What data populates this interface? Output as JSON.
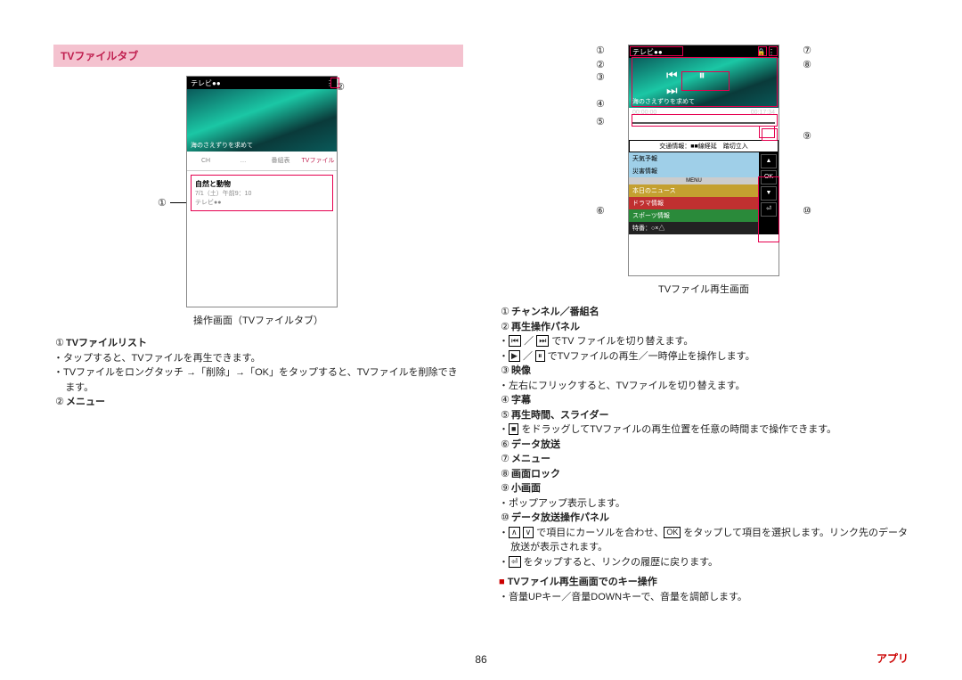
{
  "section_title": "TVファイルタブ",
  "left": {
    "phone": {
      "topbar": "テレビ●●",
      "img_caption": "海のさえずりを求めて",
      "tabs": [
        "CH",
        "…",
        "番組表",
        "TVファイル"
      ],
      "active_tab_index": 3,
      "list_title": "自然と動物",
      "list_sub1": "7/1（土）午前9：10",
      "list_sub2": "テレビ●●"
    },
    "caption": "操作画面（TVファイルタブ）",
    "callouts": [
      "①",
      "②"
    ],
    "items": [
      {
        "num": "①",
        "title": "TVファイルリスト",
        "bullets": [
          "タップすると、TVファイルを再生できます。",
          "TVファイルをロングタッチ →「削除」→「OK」をタップすると、TVファイルを削除できます。"
        ]
      },
      {
        "num": "②",
        "title": "メニュー",
        "bullets": []
      }
    ]
  },
  "right": {
    "phone": {
      "topbar": "テレビ●●",
      "img_caption": "海のさえずりを求めて",
      "play_icons": "⏮  ⏸  ⏭",
      "slider_left": "00:00:00",
      "slider_right": "00:17:34",
      "data": {
        "banner": "交通情報：■■線経延　踏切立入",
        "blue1": "天気予報",
        "blue2": "災害情報",
        "menu": "MENU",
        "gold": "本日のニュース",
        "red": "ドラマ情報",
        "green": "スポーツ情報",
        "dark": "特番：○×△",
        "btns": [
          "▲",
          "OK",
          "▼",
          "⏎"
        ]
      }
    },
    "caption": "TVファイル再生画面",
    "callouts": [
      "①",
      "②",
      "③",
      "④",
      "⑤",
      "⑥",
      "⑦",
      "⑧",
      "⑨",
      "⑩"
    ],
    "items": [
      {
        "num": "①",
        "title": "チャンネル／番組名",
        "bullets": []
      },
      {
        "num": "②",
        "title": "再生操作パネル",
        "bullets": [
          "|⏮| ／ |⏭| でTV ファイルを切り替えます。",
          "|▶| ／ |⏸| でTVファイルの再生／一時停止を操作します。"
        ]
      },
      {
        "num": "③",
        "title": "映像",
        "bullets": [
          "左右にフリックすると、TVファイルを切り替えます。"
        ]
      },
      {
        "num": "④",
        "title": "字幕",
        "bullets": []
      },
      {
        "num": "⑤",
        "title": "再生時間、スライダー",
        "bullets": [
          "|■| をドラッグしてTVファイルの再生位置を任意の時間まで操作できます。"
        ]
      },
      {
        "num": "⑥",
        "title": "データ放送",
        "bullets": []
      },
      {
        "num": "⑦",
        "title": "メニュー",
        "bullets": []
      },
      {
        "num": "⑧",
        "title": "画面ロック",
        "bullets": []
      },
      {
        "num": "⑨",
        "title": "小画面",
        "bullets": [
          "ポップアップ表示します。"
        ]
      },
      {
        "num": "⑩",
        "title": "データ放送操作パネル",
        "bullets": [
          "|∧| |∨| で項目にカーソルを合わせ、|OK| をタップして項目を選択します。リンク先のデータ放送が表示されます。",
          "|⏎| をタップすると、リンクの履歴に戻ります。"
        ]
      }
    ],
    "sub_heading_prefix": "■",
    "sub_heading": "TVファイル再生画面でのキー操作",
    "sub_bullet": "音量UPキー／音量DOWNキーで、音量を調節します。"
  },
  "page_number": "86",
  "footer_right": "アプリ",
  "colors": {
    "accent": "#e5004f",
    "title_bg": "#f4c2cf",
    "title_fg": "#c02050"
  }
}
